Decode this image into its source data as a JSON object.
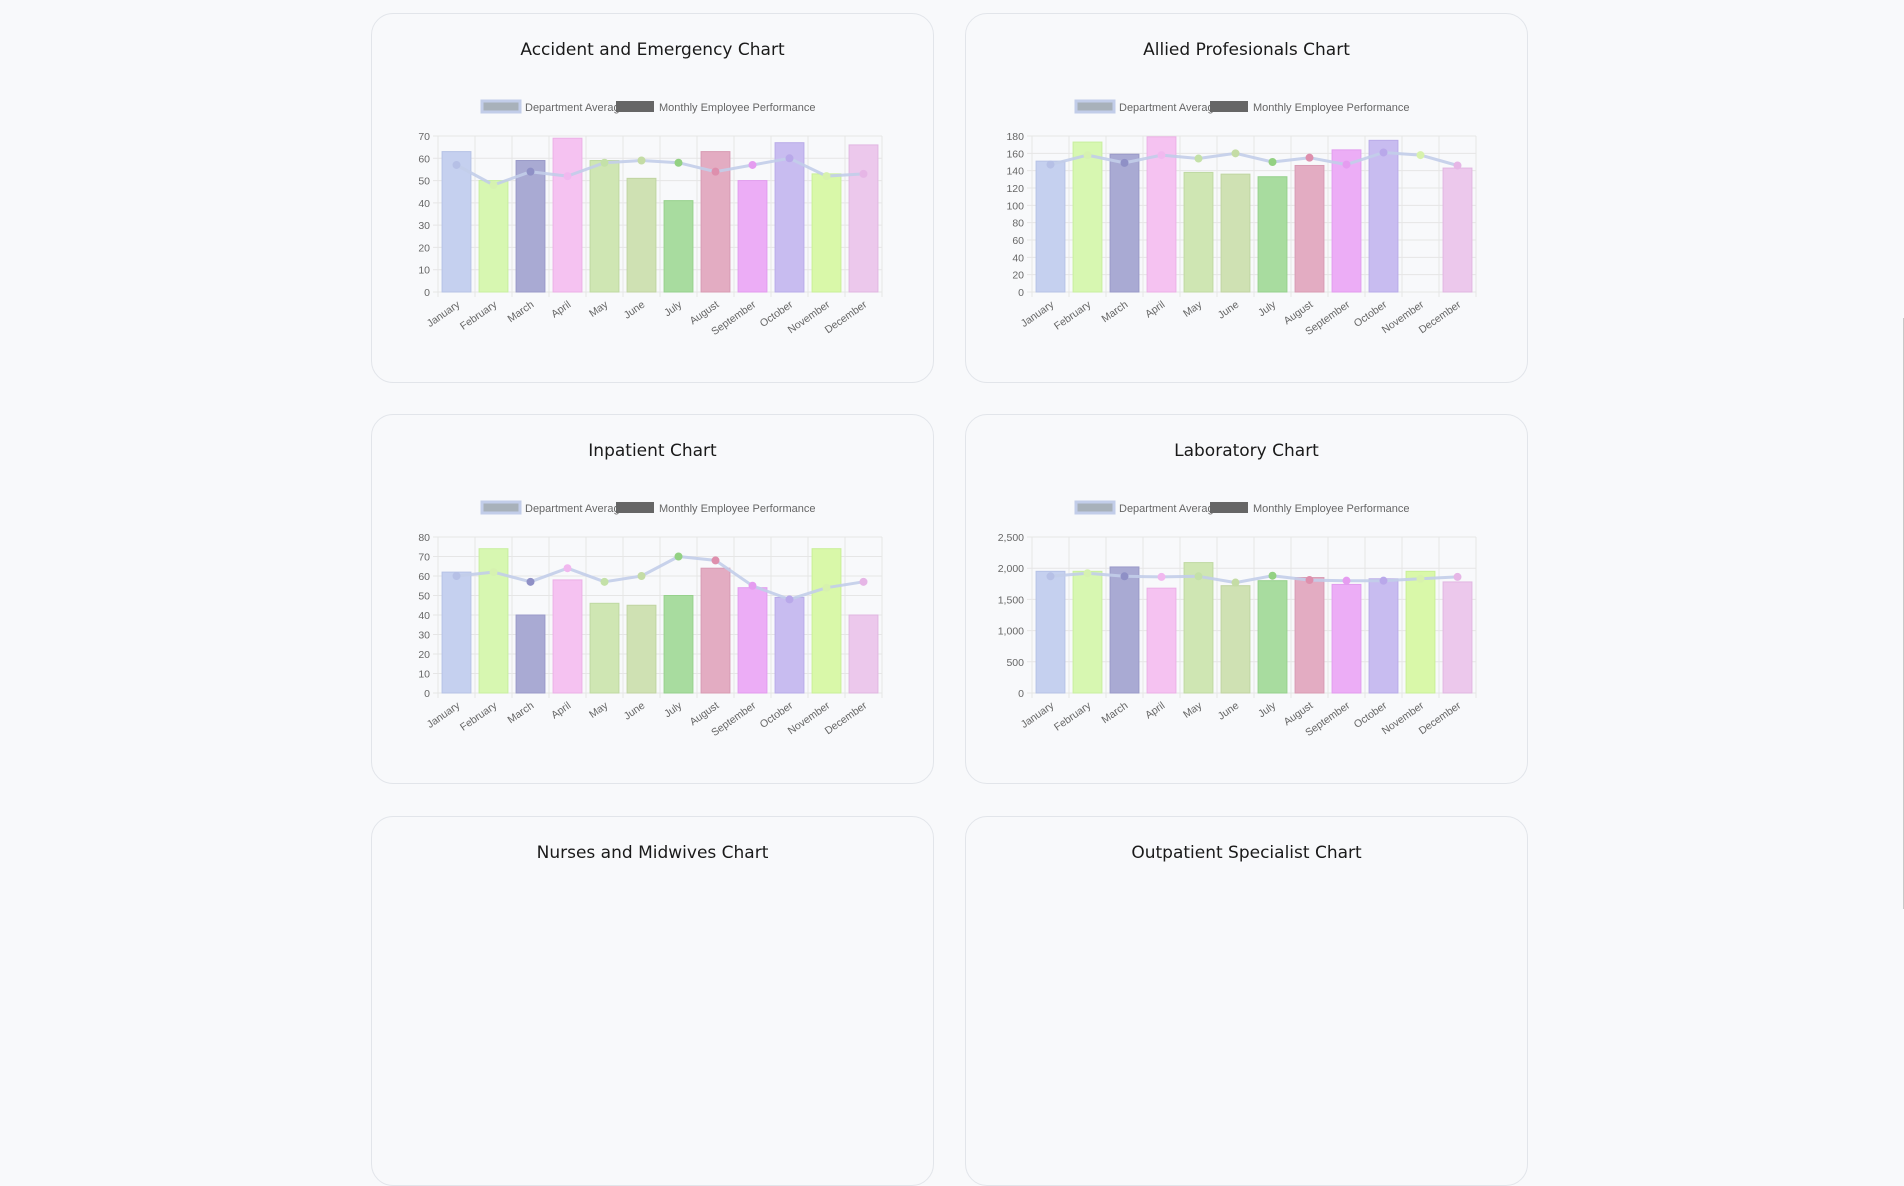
{
  "months": [
    "January",
    "February",
    "March",
    "April",
    "May",
    "June",
    "July",
    "August",
    "September",
    "October",
    "November",
    "December"
  ],
  "legend": {
    "avg_label": "Department Average",
    "perf_label": "Monthly Employee Performance"
  },
  "colors": {
    "bars": [
      "#c5d0ef",
      "#d7f7b1",
      "#a9aad3",
      "#f5c2f1",
      "#cfe6b3",
      "#cfe1b3",
      "#a8dc9f",
      "#e3acc2",
      "#ecadf6",
      "#c8bcf0",
      "#d9f8a9",
      "#ecc8ec"
    ],
    "bar_borders": [
      "#b6c2e6",
      "#c8ef9f",
      "#9a9ac8",
      "#ebb0e6",
      "#bfd9a2",
      "#c0d4a2",
      "#96d18c",
      "#d89bb3",
      "#e29cee",
      "#b9abe8",
      "#c9ef97",
      "#e1b6e1"
    ],
    "line": "#c2cde9",
    "points": [
      "#b6c0e6",
      "#d6f2b0",
      "#8f90c6",
      "#f1b8ef",
      "#c4e1a8",
      "#c4dca5",
      "#93d183",
      "#de8fad",
      "#e59cf0",
      "#b9a8ea",
      "#d7f2ad",
      "#e6b6e6"
    ],
    "avg_swatch_fill": "#a8b1ba",
    "avg_swatch_border": "#c2cde9",
    "perf_swatch": "#666666",
    "grid": "#e6e6e6",
    "tick": "#666666"
  },
  "cards": [
    {
      "title": "Accident and Emergency Chart",
      "chart_data": {
        "type": "bar",
        "title": "Accident and Emergency Chart",
        "ylim": [
          0,
          70
        ],
        "ytick_step": 10,
        "series": [
          {
            "name": "Monthly Employee Performance",
            "type": "bar",
            "values": [
              63,
              50,
              59,
              69,
              59,
              51,
              41,
              63,
              50,
              67,
              53,
              66
            ]
          },
          {
            "name": "Department Average",
            "type": "line",
            "values": [
              57,
              48,
              54,
              52,
              58,
              59,
              58,
              54,
              57,
              60,
              52,
              53
            ]
          }
        ]
      }
    },
    {
      "title": "Allied Profesionals Chart",
      "chart_data": {
        "type": "bar",
        "title": "Allied Profesionals Chart",
        "ylim": [
          0,
          180
        ],
        "ytick_step": 20,
        "series": [
          {
            "name": "Monthly Employee Performance",
            "type": "bar",
            "values": [
              151,
              173,
              159,
              179,
              138,
              136,
              133,
              146,
              164,
              175,
              null,
              143
            ]
          },
          {
            "name": "Department Average",
            "type": "line",
            "values": [
              147,
              158,
              149,
              158,
              154,
              160,
              150,
              155,
              147,
              161,
              158,
              146
            ]
          }
        ]
      }
    },
    {
      "title": "Inpatient Chart",
      "chart_data": {
        "type": "bar",
        "title": "Inpatient Chart",
        "ylim": [
          0,
          80
        ],
        "ytick_step": 10,
        "series": [
          {
            "name": "Monthly Employee Performance",
            "type": "bar",
            "values": [
              62,
              74,
              40,
              58,
              46,
              45,
              50,
              64,
              54,
              49,
              74,
              40
            ]
          },
          {
            "name": "Department Average",
            "type": "line",
            "values": [
              60,
              62,
              57,
              64,
              57,
              60,
              70,
              68,
              55,
              48,
              54,
              57
            ]
          }
        ]
      }
    },
    {
      "title": "Laboratory Chart",
      "chart_data": {
        "type": "bar",
        "title": "Laboratory Chart",
        "ylim": [
          0,
          2500
        ],
        "ytick_step": 500,
        "series": [
          {
            "name": "Monthly Employee Performance",
            "type": "bar",
            "values": [
              1950,
              1950,
              2020,
              1680,
              2090,
              1720,
              1800,
              1850,
              1740,
              1830,
              1950,
              1780
            ]
          },
          {
            "name": "Department Average",
            "type": "line",
            "values": [
              1870,
              1920,
              1870,
              1860,
              1870,
              1770,
              1880,
              1810,
              1800,
              1800,
              1830,
              1860
            ]
          }
        ]
      }
    },
    {
      "title": "Nurses and Midwives Chart"
    },
    {
      "title": "Outpatient Specialist Chart"
    }
  ]
}
